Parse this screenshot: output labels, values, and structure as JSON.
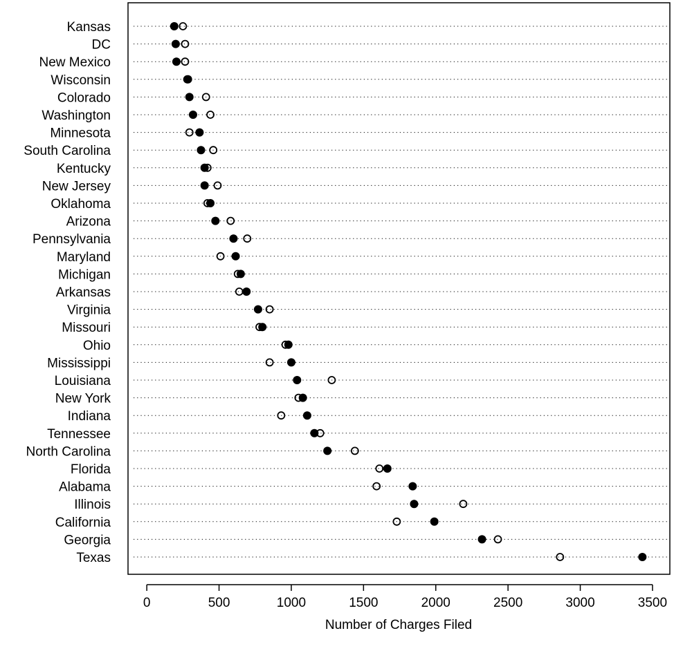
{
  "chart_data": {
    "type": "scatter",
    "xlabel": "Number of Charges Filed",
    "xticks": [
      0,
      500,
      1000,
      1500,
      2000,
      2500,
      3000,
      3500
    ],
    "xlim": [
      -130,
      3620
    ],
    "grid": "dotted horizontal per row",
    "categories": [
      "Kansas",
      "DC",
      "New Mexico",
      "Wisconsin",
      "Colorado",
      "Washington",
      "Minnesota",
      "South Carolina",
      "Kentucky",
      "New Jersey",
      "Oklahoma",
      "Arizona",
      "Pennsylvania",
      "Maryland",
      "Michigan",
      "Arkansas",
      "Virginia",
      "Missouri",
      "Ohio",
      "Mississippi",
      "Louisiana",
      "New York",
      "Indiana",
      "Tennessee",
      "North Carolina",
      "Florida",
      "Alabama",
      "Illinois",
      "California",
      "Georgia",
      "Texas"
    ],
    "series": [
      {
        "marker": "filled",
        "values": [
          190,
          200,
          205,
          285,
          295,
          320,
          365,
          375,
          400,
          400,
          440,
          475,
          600,
          615,
          650,
          690,
          770,
          800,
          980,
          1000,
          1040,
          1080,
          1110,
          1160,
          1250,
          1665,
          1840,
          1850,
          1990,
          2320,
          3430
        ]
      },
      {
        "marker": "open",
        "values": [
          250,
          265,
          265,
          280,
          410,
          440,
          295,
          460,
          420,
          490,
          420,
          580,
          695,
          510,
          630,
          640,
          850,
          780,
          960,
          850,
          1280,
          1050,
          930,
          1200,
          1440,
          1610,
          1590,
          2190,
          1730,
          2430,
          2860
        ]
      }
    ]
  }
}
